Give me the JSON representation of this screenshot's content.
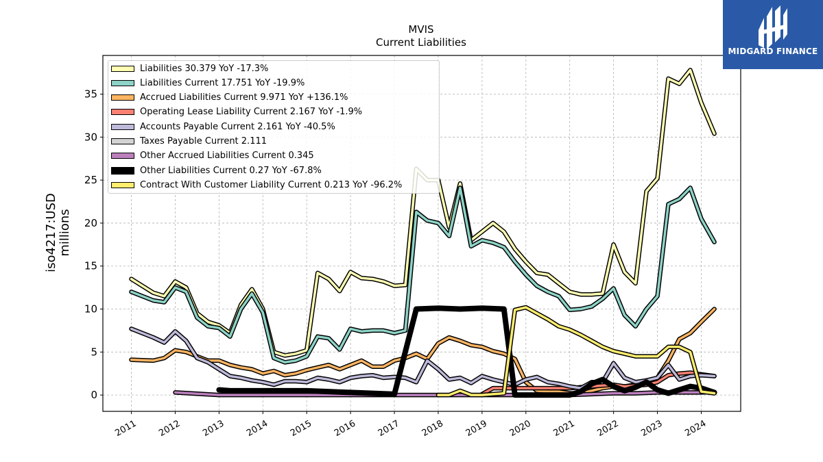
{
  "chart_data": {
    "type": "line",
    "title": "MVIS",
    "subtitle": "Current  Liabilities",
    "ylabel": "iso4217:USD\nmillions",
    "xlim": [
      2010.35,
      2024.9
    ],
    "ylim": [
      -1.9,
      39.5
    ],
    "yticks": [
      0,
      5,
      10,
      15,
      20,
      25,
      30,
      35
    ],
    "xticks": [
      "2011",
      "2012",
      "2013",
      "2014",
      "2015",
      "2016",
      "2017",
      "2018",
      "2019",
      "2020",
      "2021",
      "2022",
      "2023",
      "2024"
    ],
    "grid": true,
    "legend_position": "top-left",
    "series": [
      {
        "name": "Liabilities",
        "color": "#ffffb3",
        "width": 3.5,
        "label": "Liabilities  30.379 YoY -17.3%",
        "x": [
          2011.0,
          2011.5,
          2011.75,
          2012.0,
          2012.25,
          2012.5,
          2012.75,
          2013.0,
          2013.25,
          2013.5,
          2013.75,
          2014.0,
          2014.25,
          2014.5,
          2014.75,
          2015.0,
          2015.25,
          2015.5,
          2015.75,
          2016.0,
          2016.25,
          2016.5,
          2016.75,
          2017.0,
          2017.25,
          2017.5,
          2017.75,
          2018.0,
          2018.25,
          2018.5,
          2018.75,
          2019.0,
          2019.25,
          2019.5,
          2019.75,
          2020.0,
          2020.25,
          2020.5,
          2020.75,
          2021.0,
          2021.25,
          2021.5,
          2021.75,
          2022.0,
          2022.25,
          2022.5,
          2022.75,
          2023.0,
          2023.25,
          2023.5,
          2023.75,
          2024.0,
          2024.3
        ],
        "y": [
          13.5,
          11.9,
          11.5,
          13.2,
          12.5,
          9.5,
          8.5,
          8.1,
          7.2,
          10.5,
          12.3,
          10.0,
          5.0,
          4.6,
          4.8,
          5.2,
          14.2,
          13.5,
          12.1,
          14.3,
          13.6,
          13.5,
          13.2,
          12.7,
          12.8,
          26.3,
          25.0,
          25.0,
          19.5,
          24.6,
          18.0,
          19.0,
          20.0,
          19.0,
          17.0,
          15.5,
          14.2,
          14.0,
          13.0,
          12.0,
          11.7,
          11.7,
          11.8,
          17.5,
          14.3,
          13.0,
          23.7,
          25.2,
          36.8,
          36.2,
          37.8,
          34.0,
          30.4
        ]
      },
      {
        "name": "Liabilities Current",
        "color": "#8dd3c7",
        "width": 3.5,
        "label": "Liabilities Current  17.751 YoY -19.9%",
        "x": [
          2011.0,
          2011.5,
          2011.75,
          2012.0,
          2012.25,
          2012.5,
          2012.75,
          2013.0,
          2013.25,
          2013.5,
          2013.75,
          2014.0,
          2014.25,
          2014.5,
          2014.75,
          2015.0,
          2015.25,
          2015.5,
          2015.75,
          2016.0,
          2016.25,
          2016.5,
          2016.75,
          2017.0,
          2017.25,
          2017.5,
          2017.75,
          2018.0,
          2018.25,
          2018.5,
          2018.75,
          2019.0,
          2019.25,
          2019.5,
          2019.75,
          2020.0,
          2020.25,
          2020.5,
          2020.75,
          2021.0,
          2021.25,
          2021.5,
          2021.75,
          2022.0,
          2022.25,
          2022.5,
          2022.75,
          2023.0,
          2023.25,
          2023.5,
          2023.75,
          2024.0,
          2024.3
        ],
        "y": [
          12.0,
          11.0,
          10.8,
          12.5,
          12.0,
          9.0,
          8.0,
          7.8,
          6.8,
          10.0,
          11.8,
          9.6,
          4.3,
          3.8,
          4.0,
          4.5,
          6.8,
          6.6,
          5.3,
          7.7,
          7.4,
          7.5,
          7.5,
          7.2,
          7.5,
          21.3,
          20.3,
          20.0,
          18.5,
          24.1,
          17.3,
          18.0,
          17.7,
          17.2,
          15.5,
          14.0,
          12.7,
          12.0,
          11.5,
          9.9,
          10.0,
          10.3,
          11.2,
          12.4,
          9.3,
          8.0,
          10.0,
          11.5,
          22.2,
          22.8,
          24.1,
          20.5,
          17.8
        ]
      },
      {
        "name": "Accrued Liabilities Current",
        "color": "#fdb462",
        "width": 3.5,
        "label": "Accrued Liabilities Current  9.971 YoY +136.1%",
        "x": [
          2011.0,
          2011.5,
          2011.75,
          2012.0,
          2012.25,
          2012.5,
          2012.75,
          2013.0,
          2013.25,
          2013.5,
          2013.75,
          2014.0,
          2014.25,
          2014.5,
          2014.75,
          2015.0,
          2015.25,
          2015.5,
          2015.75,
          2016.0,
          2016.25,
          2016.5,
          2016.75,
          2017.0,
          2017.25,
          2017.5,
          2017.75,
          2018.0,
          2018.25,
          2018.5,
          2018.75,
          2019.0,
          2019.25,
          2019.5,
          2019.75,
          2020.0,
          2020.25,
          2020.5,
          2020.75,
          2021.0,
          2021.25,
          2021.5,
          2021.75,
          2022.0,
          2022.25,
          2022.5,
          2022.75,
          2023.0,
          2023.25,
          2023.5,
          2023.75,
          2024.0,
          2024.3
        ],
        "y": [
          4.1,
          4.0,
          4.3,
          5.2,
          5.0,
          4.5,
          4.0,
          4.0,
          3.5,
          3.2,
          3.0,
          2.5,
          2.8,
          2.3,
          2.5,
          2.9,
          3.2,
          3.5,
          3.0,
          3.5,
          4.0,
          3.3,
          3.3,
          4.0,
          4.3,
          4.8,
          4.2,
          6.0,
          6.7,
          6.3,
          5.8,
          5.6,
          5.1,
          4.8,
          4.2,
          1.5,
          0.5,
          0.4,
          0.4,
          0.2,
          0.2,
          0.5,
          0.8,
          1.0,
          1.0,
          1.2,
          1.5,
          2.0,
          4.0,
          6.5,
          7.2,
          8.5,
          10.0
        ]
      },
      {
        "name": "Operating Lease Liability Current",
        "color": "#fb8072",
        "width": 3.5,
        "label": "Operating Lease Liability Current  2.167 YoY -1.9%",
        "x": [
          2019.0,
          2019.25,
          2019.5,
          2019.75,
          2020.0,
          2020.25,
          2020.5,
          2020.75,
          2021.0,
          2021.25,
          2021.5,
          2021.75,
          2022.0,
          2022.25,
          2022.5,
          2022.75,
          2023.0,
          2023.25,
          2023.5,
          2023.75,
          2024.0,
          2024.3
        ],
        "y": [
          0.1,
          0.8,
          0.8,
          0.8,
          0.8,
          0.8,
          0.8,
          0.8,
          0.8,
          0.9,
          1.0,
          1.1,
          1.2,
          1.0,
          1.1,
          1.2,
          1.5,
          2.3,
          2.5,
          2.6,
          2.4,
          2.2
        ]
      },
      {
        "name": "Accounts Payable Current",
        "color": "#bebada",
        "width": 3.5,
        "label": "Accounts Payable Current  2.161 YoY -40.5%",
        "x": [
          2011.0,
          2011.5,
          2011.75,
          2012.0,
          2012.25,
          2012.5,
          2012.75,
          2013.0,
          2013.25,
          2013.5,
          2013.75,
          2014.0,
          2014.25,
          2014.5,
          2014.75,
          2015.0,
          2015.25,
          2015.5,
          2015.75,
          2016.0,
          2016.25,
          2016.5,
          2016.75,
          2017.0,
          2017.25,
          2017.5,
          2017.75,
          2018.0,
          2018.25,
          2018.5,
          2018.75,
          2019.0,
          2019.25,
          2019.5,
          2019.75,
          2020.0,
          2020.25,
          2020.5,
          2020.75,
          2021.0,
          2021.25,
          2021.5,
          2021.75,
          2022.0,
          2022.25,
          2022.5,
          2022.75,
          2023.0,
          2023.25,
          2023.5,
          2023.75,
          2024.0,
          2024.3
        ],
        "y": [
          7.7,
          6.7,
          6.1,
          7.4,
          6.3,
          4.3,
          3.8,
          3.0,
          2.2,
          2.0,
          1.7,
          1.5,
          1.2,
          1.6,
          1.6,
          1.5,
          2.0,
          1.8,
          1.5,
          2.0,
          2.2,
          2.3,
          2.0,
          2.1,
          2.0,
          1.5,
          4.0,
          3.0,
          1.8,
          2.0,
          1.4,
          2.2,
          1.8,
          1.5,
          1.2,
          1.8,
          2.1,
          1.5,
          1.3,
          1.0,
          0.8,
          1.5,
          1.5,
          3.7,
          2.0,
          1.5,
          1.7,
          2.0,
          3.5,
          1.8,
          2.2,
          2.3,
          2.2
        ]
      },
      {
        "name": "Taxes Payable Current",
        "color": "#d3d3d3",
        "width": 3.5,
        "label": "Taxes Payable Current  2.111",
        "x": [],
        "y": []
      },
      {
        "name": "Other Accrued Liabilities Current",
        "color": "#bc80bd",
        "width": 3.5,
        "label": "Other Accrued Liabilities Current  0.345",
        "x": [
          2012.0,
          2013.0,
          2014.0,
          2015.0,
          2016.0,
          2017.0,
          2017.5,
          2018.0,
          2018.5,
          2019.0,
          2019.5,
          2020.0,
          2020.5,
          2021.0,
          2021.5,
          2022.0,
          2022.5,
          2023.0,
          2023.5,
          2024.0,
          2024.3
        ],
        "y": [
          0.3,
          0.0,
          0.0,
          0.0,
          0.0,
          0.0,
          0.0,
          0.0,
          0.0,
          0.0,
          0.0,
          0.0,
          0.0,
          0.0,
          0.1,
          0.2,
          0.2,
          0.3,
          0.3,
          0.3,
          0.35
        ]
      },
      {
        "name": "Other Liabilities Current",
        "color": "#000000",
        "width": 8,
        "label": "Other Liabilities Current  0.27 YoY -67.8%",
        "x": [
          2013.0,
          2013.25,
          2014.0,
          2015.0,
          2016.0,
          2017.0,
          2017.5,
          2018.0,
          2018.5,
          2019.0,
          2019.5,
          2019.75,
          2020.0,
          2020.5,
          2021.0,
          2021.25,
          2021.5,
          2021.75,
          2022.0,
          2022.25,
          2022.5,
          2022.75,
          2023.0,
          2023.25,
          2023.5,
          2023.75,
          2024.0,
          2024.3
        ],
        "y": [
          0.6,
          0.5,
          0.5,
          0.5,
          0.3,
          0.1,
          10.0,
          10.1,
          10.0,
          10.1,
          10.0,
          0.0,
          0.0,
          0.0,
          0.0,
          0.4,
          1.3,
          1.8,
          1.0,
          0.5,
          0.9,
          1.5,
          0.6,
          0.2,
          0.6,
          1.0,
          0.8,
          0.3
        ]
      },
      {
        "name": "Contract With Customer Liability Current",
        "color": "#ffed6f",
        "width": 3.5,
        "label": "Contract With Customer Liability Current  0.213 YoY -96.2%",
        "x": [
          2018.0,
          2018.25,
          2018.5,
          2018.75,
          2019.0,
          2019.25,
          2019.5,
          2019.75,
          2020.0,
          2020.25,
          2020.5,
          2020.75,
          2021.0,
          2021.25,
          2021.5,
          2021.75,
          2022.0,
          2022.25,
          2022.5,
          2022.75,
          2023.0,
          2023.25,
          2023.5,
          2023.75,
          2024.0,
          2024.3
        ],
        "y": [
          0.0,
          0.0,
          0.5,
          0.0,
          0.0,
          0.1,
          0.2,
          9.9,
          10.2,
          9.5,
          8.8,
          8.0,
          7.6,
          7.0,
          6.3,
          5.6,
          5.1,
          4.8,
          4.5,
          4.5,
          4.5,
          5.6,
          5.6,
          5.0,
          0.4,
          0.2
        ]
      }
    ]
  },
  "logo": {
    "text": "MIDGARD FINANCE",
    "color": "#2a5aa7"
  }
}
